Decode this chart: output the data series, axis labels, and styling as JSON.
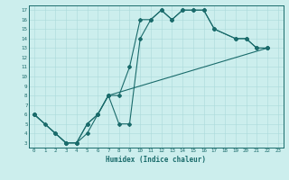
{
  "bg_color": "#cceeed",
  "line_color": "#1a6b6b",
  "xlabel": "Humidex (Indice chaleur)",
  "xlim": [
    -0.5,
    23.5
  ],
  "ylim": [
    2.5,
    17.5
  ],
  "xticks": [
    0,
    1,
    2,
    3,
    4,
    5,
    6,
    7,
    8,
    9,
    10,
    11,
    12,
    13,
    14,
    15,
    16,
    17,
    18,
    19,
    20,
    21,
    22,
    23
  ],
  "yticks": [
    3,
    4,
    5,
    6,
    7,
    8,
    9,
    10,
    11,
    12,
    13,
    14,
    15,
    16,
    17
  ],
  "line1": {
    "x": [
      0,
      1,
      2,
      3,
      4,
      5,
      6,
      7,
      8,
      9,
      10,
      11,
      12,
      13,
      14,
      15,
      16,
      17,
      19,
      20,
      21,
      22
    ],
    "y": [
      6,
      5,
      4,
      3,
      3,
      4,
      6,
      8,
      8,
      11,
      16,
      16,
      17,
      16,
      17,
      17,
      17,
      15,
      14,
      14,
      13,
      13
    ]
  },
  "line2": {
    "x": [
      0,
      2,
      3,
      4,
      5,
      6,
      7,
      8,
      9,
      10,
      11,
      12,
      13,
      14,
      15,
      16,
      17,
      19,
      20,
      21,
      22
    ],
    "y": [
      6,
      4,
      3,
      3,
      5,
      6,
      8,
      5,
      5,
      14,
      16,
      17,
      16,
      17,
      17,
      17,
      15,
      14,
      14,
      13,
      13
    ]
  },
  "line3": {
    "x": [
      0,
      3,
      4,
      5,
      6,
      7,
      22
    ],
    "y": [
      6,
      3,
      3,
      5,
      6,
      8,
      13
    ]
  }
}
